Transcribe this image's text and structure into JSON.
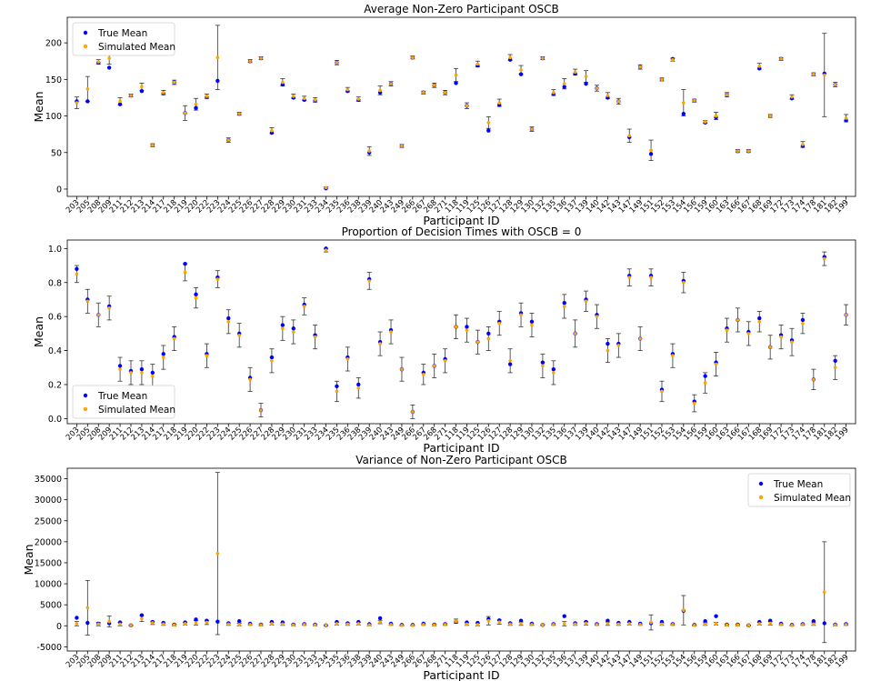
{
  "chart_data": [
    {
      "type": "scatter",
      "title": "Average Non-Zero Participant OSCB",
      "xlabel": "Participant ID",
      "ylabel": "Mean",
      "ylim": [
        -10,
        235
      ],
      "yticks": [
        0,
        50,
        100,
        150,
        200
      ],
      "legend": "top-left",
      "categories": [
        "203",
        "205",
        "208",
        "209",
        "211",
        "212",
        "213",
        "214",
        "217",
        "218",
        "219",
        "220",
        "222",
        "223",
        "224",
        "225",
        "226",
        "227",
        "228",
        "229",
        "230",
        "231",
        "233",
        "234",
        "235",
        "236",
        "238",
        "239",
        "240",
        "243",
        "249",
        "266",
        "267",
        "268",
        "271",
        "118",
        "119",
        "125",
        "126",
        "127",
        "128",
        "129",
        "130",
        "132",
        "135",
        "136",
        "137",
        "139",
        "140",
        "142",
        "143",
        "147",
        "149",
        "151",
        "152",
        "153",
        "154",
        "156",
        "159",
        "160",
        "163",
        "166",
        "167",
        "168",
        "169",
        "172",
        "173",
        "174",
        "178",
        "181",
        "182",
        "199"
      ],
      "series": [
        {
          "name": "True Mean",
          "color": "#0000ff",
          "values": [
            120,
            120,
            173,
            166,
            116,
            128,
            134,
            60,
            131,
            146,
            104,
            111,
            126,
            148,
            67,
            103,
            175,
            179,
            77,
            143,
            125,
            122,
            121,
            1,
            173,
            134,
            122,
            50,
            132,
            144,
            59,
            180,
            132,
            142,
            132,
            145,
            114,
            169,
            80,
            115,
            177,
            157,
            82,
            179,
            130,
            140,
            158,
            144,
            138,
            125,
            120,
            71,
            167,
            48,
            150,
            178,
            103,
            121,
            91,
            98,
            129,
            52,
            52,
            165,
            100,
            178,
            124,
            59,
            157,
            158,
            143,
            94
          ]
        },
        {
          "name": "Simulated Mean",
          "color": "#ffa500",
          "values": [
            118,
            137,
            174,
            179,
            120,
            128,
            140,
            60,
            132,
            146,
            104,
            116,
            127,
            180,
            67,
            103,
            175,
            179,
            80,
            146,
            127,
            124,
            122,
            2,
            173,
            136,
            123,
            52,
            135,
            144,
            59,
            180,
            132,
            142,
            132,
            156,
            114,
            171,
            91,
            118,
            180,
            163,
            82,
            179,
            132,
            144,
            160,
            154,
            138,
            128,
            120,
            73,
            167,
            53,
            150,
            177,
            118,
            121,
            92,
            100,
            129,
            52,
            52,
            168,
            100,
            178,
            126,
            61,
            157,
            156,
            143,
            97
          ]
        }
      ],
      "errors": [
        8,
        17,
        3,
        8,
        5,
        2,
        5,
        2,
        3,
        3,
        10,
        8,
        3,
        44,
        3,
        2,
        2,
        2,
        4,
        5,
        3,
        3,
        3,
        1,
        3,
        3,
        3,
        6,
        6,
        3,
        2,
        2,
        2,
        3,
        3,
        9,
        4,
        4,
        8,
        5,
        4,
        6,
        3,
        2,
        4,
        7,
        4,
        8,
        4,
        4,
        4,
        9,
        3,
        14,
        2,
        2,
        18,
        2,
        2,
        5,
        3,
        2,
        2,
        4,
        2,
        2,
        3,
        4,
        2,
        57,
        3,
        5
      ]
    },
    {
      "type": "scatter",
      "title": "Proportion of Decision Times with OSCB = 0",
      "xlabel": "Participant ID",
      "ylabel": "Mean",
      "ylim": [
        -0.03,
        1.05
      ],
      "yticks": [
        0.0,
        0.2,
        0.4,
        0.6,
        0.8,
        1.0
      ],
      "legend": "bottom-left",
      "categories": [
        "203",
        "205",
        "208",
        "209",
        "211",
        "212",
        "213",
        "214",
        "217",
        "218",
        "219",
        "220",
        "222",
        "223",
        "224",
        "225",
        "226",
        "227",
        "228",
        "229",
        "230",
        "231",
        "233",
        "234",
        "235",
        "236",
        "238",
        "239",
        "240",
        "243",
        "249",
        "266",
        "267",
        "268",
        "271",
        "118",
        "119",
        "125",
        "126",
        "127",
        "128",
        "129",
        "130",
        "132",
        "135",
        "136",
        "137",
        "139",
        "140",
        "142",
        "143",
        "147",
        "149",
        "151",
        "152",
        "153",
        "154",
        "156",
        "159",
        "160",
        "163",
        "166",
        "167",
        "168",
        "169",
        "172",
        "173",
        "174",
        "178",
        "181",
        "182",
        "199"
      ],
      "series": [
        {
          "name": "True Mean",
          "color": "#0000ff",
          "values": [
            0.88,
            0.7,
            0.61,
            0.66,
            0.31,
            0.28,
            0.29,
            0.27,
            0.38,
            0.48,
            0.91,
            0.73,
            0.38,
            0.83,
            0.59,
            0.5,
            0.24,
            0.05,
            0.36,
            0.55,
            0.53,
            0.67,
            0.49,
            1.0,
            0.19,
            0.36,
            0.2,
            0.82,
            0.45,
            0.52,
            0.29,
            0.04,
            0.27,
            0.31,
            0.35,
            0.54,
            0.54,
            0.45,
            0.5,
            0.57,
            0.32,
            0.62,
            0.57,
            0.33,
            0.29,
            0.68,
            0.5,
            0.7,
            0.61,
            0.44,
            0.44,
            0.84,
            0.47,
            0.84,
            0.17,
            0.38,
            0.81,
            0.1,
            0.25,
            0.33,
            0.53,
            0.58,
            0.51,
            0.59,
            0.42,
            0.49,
            0.46,
            0.58,
            0.23,
            0.95,
            0.34,
            0.61
          ]
        },
        {
          "name": "Simulated Mean",
          "color": "#ffa500",
          "values": [
            0.85,
            0.69,
            0.61,
            0.65,
            0.29,
            0.27,
            0.27,
            0.25,
            0.36,
            0.47,
            0.86,
            0.71,
            0.37,
            0.82,
            0.57,
            0.49,
            0.23,
            0.05,
            0.34,
            0.53,
            0.51,
            0.66,
            0.48,
            0.99,
            0.16,
            0.35,
            0.18,
            0.81,
            0.44,
            0.51,
            0.29,
            0.04,
            0.26,
            0.31,
            0.34,
            0.54,
            0.52,
            0.45,
            0.47,
            0.56,
            0.34,
            0.61,
            0.55,
            0.31,
            0.27,
            0.66,
            0.5,
            0.69,
            0.6,
            0.4,
            0.43,
            0.83,
            0.47,
            0.83,
            0.16,
            0.37,
            0.8,
            0.09,
            0.21,
            0.32,
            0.52,
            0.58,
            0.5,
            0.57,
            0.42,
            0.48,
            0.45,
            0.56,
            0.23,
            0.94,
            0.3,
            0.61
          ]
        }
      ],
      "errors": [
        0.05,
        0.07,
        0.07,
        0.07,
        0.07,
        0.07,
        0.07,
        0.07,
        0.07,
        0.07,
        0.05,
        0.06,
        0.07,
        0.05,
        0.07,
        0.07,
        0.07,
        0.04,
        0.07,
        0.07,
        0.07,
        0.05,
        0.07,
        0.01,
        0.06,
        0.07,
        0.06,
        0.05,
        0.07,
        0.07,
        0.07,
        0.04,
        0.06,
        0.07,
        0.07,
        0.07,
        0.07,
        0.07,
        0.07,
        0.07,
        0.07,
        0.07,
        0.07,
        0.07,
        0.07,
        0.07,
        0.08,
        0.06,
        0.07,
        0.07,
        0.07,
        0.05,
        0.07,
        0.05,
        0.06,
        0.07,
        0.06,
        0.05,
        0.06,
        0.07,
        0.07,
        0.07,
        0.07,
        0.06,
        0.07,
        0.07,
        0.08,
        0.06,
        0.06,
        0.04,
        0.07,
        0.06
      ]
    },
    {
      "type": "scatter",
      "title": "Variance of Non-Zero Participant OSCB",
      "xlabel": "Participant ID",
      "ylabel": "Mean",
      "ylim": [
        -6000,
        37500
      ],
      "yticks": [
        -5000,
        0,
        5000,
        10000,
        15000,
        20000,
        25000,
        30000,
        35000
      ],
      "legend": "top-right",
      "categories": [
        "203",
        "205",
        "208",
        "209",
        "211",
        "212",
        "213",
        "214",
        "217",
        "218",
        "219",
        "220",
        "222",
        "223",
        "224",
        "225",
        "226",
        "227",
        "228",
        "229",
        "230",
        "231",
        "233",
        "234",
        "235",
        "236",
        "238",
        "239",
        "240",
        "243",
        "249",
        "266",
        "267",
        "268",
        "271",
        "118",
        "119",
        "125",
        "126",
        "127",
        "128",
        "129",
        "130",
        "132",
        "135",
        "136",
        "137",
        "139",
        "140",
        "142",
        "143",
        "147",
        "149",
        "151",
        "152",
        "153",
        "154",
        "156",
        "159",
        "160",
        "163",
        "166",
        "167",
        "168",
        "169",
        "172",
        "173",
        "174",
        "178",
        "181",
        "182",
        "199"
      ],
      "series": [
        {
          "name": "True Mean",
          "color": "#0000ff",
          "values": [
            1900,
            700,
            500,
            600,
            800,
            100,
            2500,
            900,
            700,
            300,
            800,
            1500,
            1200,
            1000,
            600,
            1100,
            500,
            300,
            900,
            800,
            300,
            400,
            300,
            100,
            900,
            600,
            900,
            400,
            1800,
            500,
            200,
            200,
            500,
            300,
            400,
            1000,
            800,
            700,
            1600,
            1300,
            600,
            1200,
            500,
            200,
            400,
            2300,
            600,
            900,
            400,
            1200,
            700,
            900,
            500,
            600,
            900,
            400,
            3600,
            200,
            1100,
            2300,
            300,
            300,
            100,
            900,
            1200,
            500,
            200,
            400,
            1100,
            600,
            300,
            400
          ]
        },
        {
          "name": "Simulated Mean",
          "color": "#ffa500",
          "values": [
            500,
            4300,
            400,
            1000,
            400,
            100,
            1700,
            700,
            400,
            200,
            500,
            700,
            800,
            17200,
            400,
            300,
            300,
            200,
            500,
            400,
            200,
            300,
            200,
            100,
            500,
            400,
            500,
            200,
            900,
            300,
            100,
            100,
            300,
            200,
            300,
            1100,
            400,
            300,
            1200,
            900,
            400,
            500,
            300,
            200,
            300,
            500,
            400,
            600,
            300,
            500,
            400,
            500,
            300,
            800,
            400,
            300,
            3700,
            100,
            400,
            500,
            200,
            200,
            100,
            500,
            600,
            300,
            100,
            300,
            400,
            8000,
            200,
            300
          ]
        }
      ],
      "errors": [
        500,
        6500,
        400,
        1300,
        400,
        100,
        700,
        400,
        300,
        200,
        300,
        500,
        500,
        19300,
        300,
        300,
        200,
        200,
        300,
        300,
        200,
        200,
        200,
        100,
        300,
        300,
        300,
        200,
        400,
        200,
        100,
        100,
        200,
        200,
        200,
        500,
        300,
        300,
        1000,
        500,
        300,
        400,
        200,
        100,
        200,
        500,
        300,
        400,
        200,
        400,
        300,
        300,
        200,
        1800,
        300,
        200,
        3500,
        100,
        300,
        300,
        200,
        200,
        100,
        300,
        400,
        200,
        100,
        200,
        300,
        12000,
        200,
        200
      ]
    }
  ]
}
